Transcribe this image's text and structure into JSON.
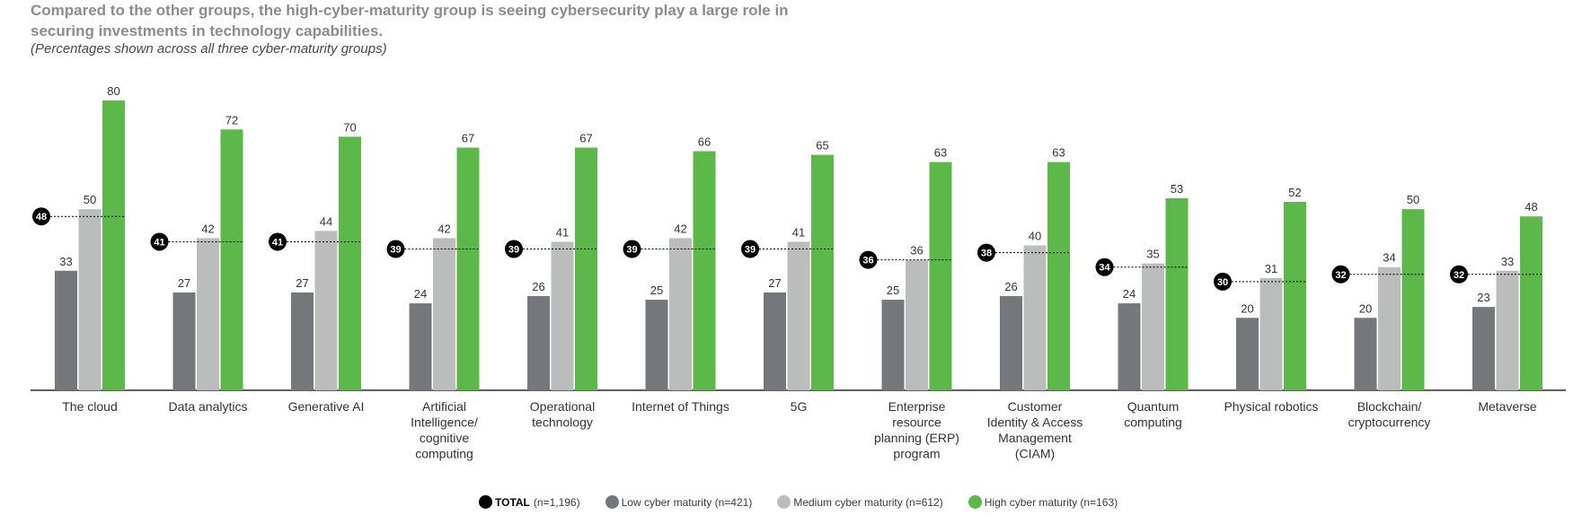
{
  "header": {
    "title": "Compared to the other groups, the high-cyber-maturity group is seeing cybersecurity play a large role in securing investments in technology capabilities.",
    "subtitle": "(Percentages shown across all three cyber-maturity groups)"
  },
  "colors": {
    "total": "#000000",
    "low": "#75787b",
    "medium": "#bbbcbc",
    "high": "#5cb848",
    "axis": "#000000",
    "label": "#333333"
  },
  "legend": [
    {
      "key": "total",
      "bold": "TOTAL",
      "label": "(n=1,196)"
    },
    {
      "key": "low",
      "bold": "",
      "label": "Low cyber maturity (n=421)"
    },
    {
      "key": "medium",
      "bold": "",
      "label": "Medium cyber maturity (n=612)"
    },
    {
      "key": "high",
      "bold": "",
      "label": "High cyber maturity (n=163)"
    }
  ],
  "chart_data": {
    "type": "bar",
    "title": "Compared to the other groups, the high-cyber-maturity group is seeing cybersecurity play a large role in securing investments in technology capabilities.",
    "subtitle": "(Percentages shown across all three cyber-maturity groups)",
    "xlabel": "",
    "ylabel": "",
    "ylim": [
      0,
      80
    ],
    "grid": false,
    "legend_position": "bottom",
    "categories": [
      [
        "The cloud"
      ],
      [
        "Data  analytics"
      ],
      [
        "Generative AI"
      ],
      [
        "Artificial",
        "Intelligence/",
        "cognitive",
        "computing"
      ],
      [
        "Operational",
        "technology"
      ],
      [
        "Internet of Things"
      ],
      [
        "5G"
      ],
      [
        "Enterprise",
        "resource",
        "planning  (ERP)",
        "program"
      ],
      [
        "Customer",
        "Identity  & Access",
        "Management",
        "(CIAM)"
      ],
      [
        "Quantum",
        "computing"
      ],
      [
        "Physical robotics"
      ],
      [
        "Blockchain/",
        "cryptocurrency"
      ],
      [
        "Metaverse"
      ]
    ],
    "series": [
      {
        "name": "Low cyber maturity (n=421)",
        "key": "low",
        "values": [
          33,
          27,
          27,
          24,
          26,
          25,
          27,
          25,
          26,
          24,
          20,
          20,
          23
        ]
      },
      {
        "name": "Medium cyber maturity (n=612)",
        "key": "medium",
        "values": [
          50,
          42,
          44,
          42,
          41,
          42,
          41,
          36,
          40,
          35,
          31,
          34,
          33
        ]
      },
      {
        "name": "High cyber maturity (n=163)",
        "key": "high",
        "values": [
          80,
          72,
          70,
          67,
          67,
          66,
          65,
          63,
          63,
          53,
          52,
          50,
          48
        ]
      }
    ],
    "total": {
      "name": "TOTAL (n=1,196)",
      "key": "total",
      "values": [
        48,
        41,
        41,
        39,
        39,
        39,
        39,
        36,
        38,
        34,
        30,
        32,
        32
      ]
    }
  }
}
